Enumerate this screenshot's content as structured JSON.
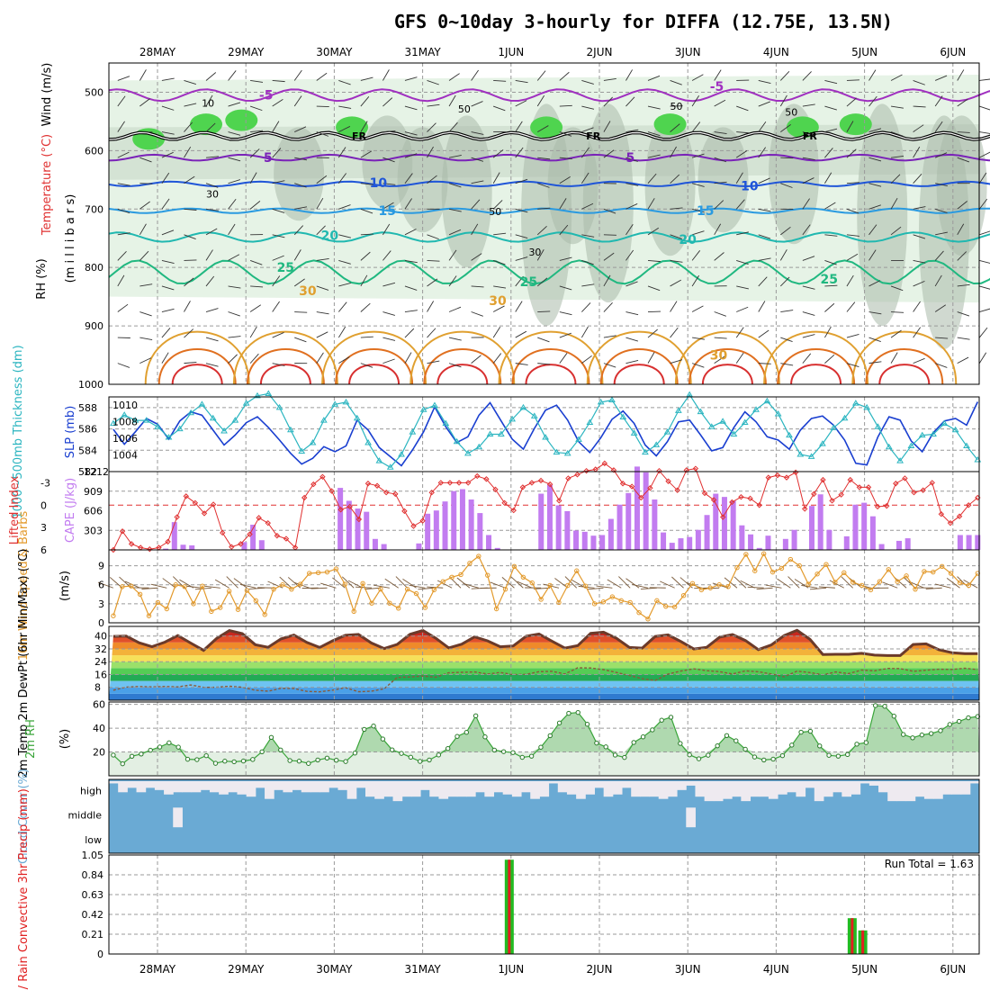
{
  "title": "GFS 0~10day 3-hourly for DIFFA (12.75E, 13.5N)",
  "days": [
    "28MAY",
    "29MAY",
    "30MAY",
    "31MAY",
    "1JUN",
    "2JUN",
    "3JUN",
    "4JUN",
    "5JUN",
    "6JUN"
  ],
  "colors": {
    "rh_green": "#4fd44f",
    "rh_gray": "#a9b9a9",
    "rh_pale": "#e6f3e6",
    "slp": "#1a3fd0",
    "thickness": "#2bb5c0",
    "lifted": "#e03030",
    "cape": "#c27cf0",
    "wind10": "#e39a2c",
    "barb": "#7a5a3a",
    "temp_top": "#6b3a2a",
    "dewpt": "#8a5a3a",
    "rh2m": "#3aa53a",
    "cloud": "#6aaad4",
    "cloud_gap": "#eeeaf0",
    "precip_total": "#22bb22",
    "precip_conv": "#e02020"
  },
  "chart_data": [
    {
      "type": "contour",
      "panel": "upper-air",
      "ylabels": [
        "Wind (m/s)",
        "Temperature (°C)",
        "(m i l l i b a r s)",
        "RH (%)"
      ],
      "ylim": [
        1000,
        450
      ],
      "yticks": [
        500,
        600,
        700,
        800,
        900,
        1000
      ],
      "rh_labels": [
        "10",
        "50",
        "30",
        "50",
        "30",
        "50",
        "50"
      ],
      "freezing_label": "FR",
      "isotherms": [
        {
          "label": "-5",
          "pressure": 505
        },
        {
          "label": "-5",
          "pressure": 490
        },
        {
          "label": "5",
          "pressure": 612
        },
        {
          "label": "5",
          "pressure": 612
        },
        {
          "label": "10",
          "pressure": 655
        },
        {
          "label": "10",
          "pressure": 660
        },
        {
          "label": "15",
          "pressure": 703
        },
        {
          "label": "15",
          "pressure": 703
        },
        {
          "label": "20",
          "pressure": 745
        },
        {
          "label": "20",
          "pressure": 752
        },
        {
          "label": "25",
          "pressure": 800
        },
        {
          "label": "25",
          "pressure": 824
        },
        {
          "label": "25",
          "pressure": 820
        },
        {
          "label": "30",
          "pressure": 840
        },
        {
          "label": "30",
          "pressure": 857
        },
        {
          "label": "30",
          "pressure": 950
        }
      ]
    },
    {
      "type": "line",
      "panel": "slp-thickness",
      "ylabel_left": "1000~500mb Thickness (dm)",
      "ylabel_right": "SLP (mb)",
      "left_ticks": [
        582,
        584,
        586,
        588
      ],
      "right_ticks": [
        1004,
        1006,
        1008,
        1010
      ],
      "series": [
        {
          "name": "SLP (mb)",
          "axis": "right",
          "values": [
            1007.1,
            1005.3,
            1006.8,
            1008.4,
            1007.7,
            1005.9,
            1008.1,
            1009.2,
            1008.8,
            1007.0,
            1005.2,
            1006.4,
            1007.9,
            1008.6,
            1007.3,
            1005.8,
            1004.2,
            1002.9,
            1003.6,
            1005.0,
            1004.4,
            1005.1,
            1008.2,
            1007.0,
            1004.9,
            1003.8,
            1002.7,
            1004.6,
            1006.8,
            1009.8,
            1007.4,
            1005.5,
            1006.2,
            1008.8,
            1010.3,
            1008.1,
            1005.9,
            1004.7,
            1007.2,
            1009.4,
            1010.0,
            1008.2,
            1005.6,
            1004.3,
            1006.1,
            1008.3,
            1009.3,
            1007.8,
            1005.2,
            1003.9,
            1005.6,
            1008.0,
            1008.2,
            1006.4,
            1004.5,
            1004.9,
            1007.3,
            1009.2,
            1008.0,
            1006.2,
            1005.8,
            1004.7,
            1007.0,
            1008.4,
            1008.7,
            1007.6,
            1005.8,
            1003.0,
            1002.8,
            1006.2,
            1008.6,
            1008.2,
            1005.7,
            1004.4,
            1006.7,
            1008.1,
            1008.4,
            1007.6,
            1010.4
          ]
        },
        {
          "name": "Thickness (dm)",
          "axis": "left",
          "values": [
            586.5,
            587.3,
            586.8,
            586.8,
            586.2,
            585.2,
            586.0,
            587.5,
            588.3,
            587.0,
            585.8,
            586.8,
            588.4,
            589.1,
            589.3,
            588.0,
            585.9,
            583.9,
            584.7,
            586.8,
            588.3,
            588.5,
            587.0,
            584.7,
            583.0,
            582.4,
            583.6,
            585.7,
            587.8,
            588.2,
            586.5,
            584.8,
            583.7,
            584.3,
            585.5,
            585.5,
            586.9,
            588.0,
            587.2,
            585.2,
            583.8,
            583.7,
            585.0,
            586.6,
            588.5,
            588.7,
            587.1,
            585.6,
            583.8,
            584.5,
            585.7,
            587.7,
            589.2,
            587.6,
            586.2,
            586.7,
            585.5,
            586.6,
            587.8,
            588.6,
            587.4,
            585.4,
            583.6,
            583.4,
            584.6,
            586.1,
            587.0,
            588.4,
            588.0,
            586.2,
            584.3,
            583.0,
            584.4,
            585.4,
            585.5,
            586.5,
            585.9,
            584.4,
            583.1
          ]
        }
      ]
    },
    {
      "type": "bar+line",
      "panel": "cape-li",
      "ylabel_left": "Lifted Index",
      "ylabel_right": "CAPE (J/kg)",
      "li_ticks": [
        "-3",
        "0",
        "3",
        "6"
      ],
      "cape_ticks": [
        "303",
        "606",
        "909",
        "1212"
      ],
      "cape_values": [
        0,
        0,
        0,
        0,
        0,
        0,
        20,
        430,
        80,
        70,
        0,
        0,
        0,
        0,
        0,
        120,
        390,
        150,
        0,
        0,
        0,
        0,
        0,
        0,
        0,
        0,
        960,
        760,
        640,
        590,
        170,
        90,
        0,
        0,
        0,
        100,
        560,
        610,
        750,
        910,
        940,
        780,
        570,
        230,
        30,
        0,
        0,
        0,
        0,
        870,
        1010,
        690,
        600,
        300,
        280,
        220,
        230,
        480,
        700,
        880,
        1290,
        1200,
        780,
        270,
        110,
        180,
        200,
        310,
        540,
        870,
        820,
        760,
        380,
        240,
        30,
        220,
        0,
        170,
        310,
        0,
        680,
        860,
        310,
        0,
        210,
        700,
        730,
        520,
        90,
        0,
        140,
        180,
        0,
        0,
        0,
        0,
        0,
        230,
        230,
        230
      ],
      "li_values": [
        6.0,
        3.5,
        5.2,
        5.7,
        5.9,
        5.7,
        4.9,
        1.6,
        -1.2,
        -0.3,
        1.1,
        -0.1,
        3.7,
        5.6,
        5.2,
        3.9,
        1.7,
        2.4,
        4.1,
        4.5,
        5.7,
        -1.0,
        -2.8,
        -3.8,
        -1.9,
        0.6,
        0.2,
        1.9,
        -2.9,
        -2.6,
        -1.7,
        -1.5,
        0.8,
        2.8,
        2.1,
        -1.7,
        -3.0,
        -3.0,
        -3.0,
        -3.0,
        -3.9,
        -3.5,
        -2.1,
        -0.3,
        0.7,
        -2.4,
        -3.0,
        -3.3,
        -2.8,
        -0.6,
        -3.6,
        -4.1,
        -4.6,
        -4.8,
        -5.6,
        -4.7,
        -2.9,
        -2.5,
        -1.0,
        -2.3,
        -4.6,
        -3.2,
        -2.0,
        -4.7,
        -4.9,
        -1.6,
        -0.7,
        1.6,
        -0.4,
        -1.1,
        -0.9,
        0.0,
        -3.7,
        -4.0,
        -3.7,
        -4.4,
        0.5,
        -1.5,
        -3.4,
        -0.6,
        -1.4,
        -3.4,
        -2.4,
        -2.4,
        0.2,
        0.1,
        -2.9,
        -3.6,
        -1.7,
        -2.0,
        -3.0,
        1.2,
        2.4,
        1.5,
        0.0,
        -1.0
      ]
    },
    {
      "type": "line",
      "panel": "wind10",
      "ylabel": "10m Wind Speed & Barbs",
      "unit": "(m/s)",
      "yticks": [
        0,
        3,
        6,
        9
      ],
      "values": [
        1.1,
        5.7,
        5.8,
        4.5,
        1.1,
        3.2,
        2.2,
        6.0,
        5.7,
        3.0,
        5.8,
        1.8,
        2.4,
        5.0,
        2.1,
        5.1,
        3.5,
        1.3,
        5.3,
        6.0,
        5.3,
        6.1,
        7.8,
        7.9,
        8.0,
        8.5,
        6.1,
        1.8,
        6.2,
        3.1,
        5.3,
        3.1,
        2.3,
        5.3,
        4.6,
        2.4,
        5.2,
        6.5,
        7.2,
        7.6,
        9.4,
        10.5,
        7.5,
        2.2,
        5.3,
        8.9,
        7.2,
        6.3,
        3.7,
        5.9,
        3.2,
        5.9,
        8.2,
        5.8,
        3.0,
        3.3,
        4.1,
        3.5,
        3.2,
        1.6,
        0.6,
        3.5,
        2.6,
        2.5,
        4.3,
        6.2,
        5.2,
        5.5,
        6.0,
        5.7,
        8.7,
        10.8,
        8.2,
        10.9,
        8.0,
        8.6,
        10.0,
        9.0,
        6.1,
        7.7,
        9.2,
        6.4,
        7.9,
        6.4,
        5.9,
        5.2,
        6.5,
        8.4,
        6.5,
        7.4,
        5.3,
        8.1,
        8.0,
        8.9,
        7.8,
        6.3,
        5.9,
        7.8
      ]
    },
    {
      "type": "area",
      "panel": "temp2m",
      "ylabel": "2m Temp 2m DewPt (6hr Min/Max) (°C)",
      "yticks": [
        8,
        16,
        24,
        32,
        40
      ],
      "temp_values": [
        39.8,
        40.0,
        35.8,
        33.4,
        36.2,
        40.3,
        35.6,
        31.1,
        38.4,
        43.4,
        41.5,
        34.6,
        33.0,
        38.2,
        40.6,
        36.0,
        32.9,
        37.0,
        40.5,
        41.0,
        35.7,
        32.2,
        34.8,
        41.1,
        43.5,
        38.6,
        32.6,
        34.9,
        39.5,
        37.0,
        33.3,
        33.8,
        39.9,
        41.3,
        36.8,
        32.5,
        34.0,
        41.7,
        42.4,
        38.6,
        32.9,
        32.5,
        39.7,
        40.7,
        36.6,
        31.9,
        33.0,
        39.3,
        40.9,
        37.2,
        31.5,
        34.4,
        40.3,
        43.6,
        37.9,
        28.5,
        28.6,
        28.6,
        29.2,
        28.1,
        27.8,
        27.8,
        34.7,
        35.1,
        31.4,
        29.6,
        29.0,
        29.0
      ],
      "dewpt_values": [
        6.2,
        8.2,
        8.5,
        8.3,
        8.5,
        8.3,
        9.5,
        8.0,
        8.1,
        8.7,
        8.1,
        6.2,
        5.6,
        7.4,
        7.3,
        5.5,
        5.2,
        6.3,
        7.8,
        5.3,
        5.6,
        7.1,
        14.2,
        14.5,
        15.1,
        14.3,
        17.1,
        17.4,
        17.6,
        16.3,
        17.3,
        16.0,
        16.1,
        17.8,
        18.0,
        16.3,
        20.2,
        20.1,
        19.1,
        17.3,
        15.4,
        13.4,
        12.3,
        16.3,
        18.2,
        19.6,
        18.4,
        17.8,
        16.4,
        18.3,
        17.7,
        16.4,
        14.6,
        18.1,
        17.2,
        15.8,
        17.6,
        16.6,
        18.8,
        18.3,
        19.8,
        19.7,
        18.0,
        18.7,
        19.3,
        19.2,
        19.9,
        19.1
      ]
    },
    {
      "type": "area",
      "panel": "rh2m",
      "ylabel": "2m RH",
      "unit": "(%)",
      "yticks": [
        20,
        40,
        60
      ],
      "values": [
        17.4,
        10.1,
        16.4,
        18.3,
        21.5,
        24.2,
        27.7,
        24.1,
        13.9,
        13.6,
        16.9,
        10.5,
        12.3,
        11.8,
        12.4,
        13.7,
        20.2,
        32.3,
        21.7,
        12.8,
        12.3,
        10.4,
        13.3,
        14.9,
        13.1,
        12.0,
        19.1,
        39.0,
        41.8,
        30.9,
        21.8,
        18.8,
        15.6,
        12.1,
        13.3,
        17.5,
        22.9,
        33.1,
        36.5,
        50.4,
        32.7,
        21.6,
        20.3,
        19.5,
        15.5,
        16.5,
        24.0,
        33.7,
        44.4,
        52.5,
        53.2,
        43.3,
        27.5,
        24.3,
        17.4,
        15.4,
        28.0,
        32.7,
        38.6,
        46.7,
        49.2,
        27.2,
        17.6,
        14.3,
        17.3,
        25.2,
        33.8,
        29.4,
        22.3,
        15.8,
        13.3,
        14.0,
        16.9,
        25.8,
        36.6,
        37.4,
        25.1,
        17.2,
        16.5,
        17.9,
        26.6,
        27.9,
        59.0,
        58.4,
        50.1,
        34.7,
        31.9,
        34.3,
        35.5,
        37.9,
        43.1,
        45.7,
        48.7,
        49.8
      ]
    },
    {
      "type": "heatmap",
      "panel": "cloud",
      "ylabel": "Cloud Cover (%)",
      "levels": [
        "high",
        "middle",
        "low"
      ],
      "high": [
        0.9,
        0.5,
        0.7,
        0.5,
        0.7,
        0.6,
        0.4,
        0.5,
        0.5,
        0.5,
        0.6,
        0.5,
        0.4,
        0.5,
        0.4,
        0.3,
        0.7,
        0.2,
        0.6,
        0.5,
        0.6,
        0.5,
        0.5,
        0.5,
        0.7,
        0.6,
        0.2,
        0.7,
        0.3,
        0.2,
        0.3,
        0.1,
        0.3,
        0.3,
        0.6,
        0.3,
        0.2,
        0.3,
        0.3,
        0.3,
        0.5,
        0.3,
        0.5,
        0.4,
        0.3,
        0.5,
        0.2,
        0.3,
        0.9,
        0.5,
        0.4,
        0.2,
        0.4,
        0.7,
        0.3,
        0.4,
        0.7,
        0.3,
        0.3,
        0.3,
        0.2,
        0.3,
        0.6,
        0.8,
        0.3,
        0.1,
        0.1,
        0.2,
        0.3,
        0.1,
        0.3,
        0.3,
        0.2,
        0.4,
        0.5,
        0.3,
        0.7,
        0.1,
        0.3,
        0.5,
        0.3,
        0.4,
        0.9,
        0.8,
        0.5,
        0.1,
        0.1,
        0.1,
        0.3,
        0.2,
        0.2,
        0.4,
        0.4,
        0.4,
        0.9
      ],
      "middle": [
        0.0,
        0.0,
        0.0,
        0.0,
        0.0,
        0.0,
        0.0,
        0.3,
        0.0,
        0.0,
        0.0,
        0.0,
        0.0,
        0.0,
        0.0,
        0.0,
        0.0,
        0.0,
        0.0,
        0.0,
        0.0,
        0.0,
        0.0,
        0.0,
        0.0,
        0.0,
        0.0,
        0.0,
        0.0,
        0.0,
        0.0,
        0.0,
        0.0,
        0.0,
        0.0,
        0.0,
        0.0,
        0.0,
        0.0,
        0.0,
        0.0,
        0.0,
        0.0,
        0.0,
        0.0,
        0.0,
        0.0,
        0.0,
        0.0,
        0.0,
        0.0,
        0.0,
        0.0,
        0.0,
        0.0,
        0.0,
        0.0,
        0.0,
        0.0,
        0.0,
        0.0,
        0.0,
        0.0,
        0.6,
        0.0,
        0.0,
        0.0,
        0.0,
        0.0,
        0.0,
        0.0,
        0.0,
        0.0,
        0.0,
        0.0,
        0.0,
        0.0,
        0.0,
        0.0,
        0.0,
        0.0,
        0.0,
        0.0,
        0.0,
        0.0,
        0.0,
        0.0,
        0.0,
        0.0,
        0.0,
        0.0,
        0.0,
        0.0,
        0.0,
        0.0
      ],
      "low": [
        0.0,
        0.0,
        0.0,
        0.0,
        0.0,
        0.0,
        0.0,
        0.0,
        0.0,
        0.0,
        0.0,
        0.0,
        0.0,
        0.0,
        0.0,
        0.0,
        0.0,
        0.0,
        0.0,
        0.0,
        0.0,
        0.0,
        0.0,
        0.0,
        0.0,
        0.0,
        0.0,
        0.0,
        0.0,
        0.0,
        0.0,
        0.0,
        0.0,
        0.0,
        0.0,
        0.0,
        0.0,
        0.0,
        0.0,
        0.0,
        0.0,
        0.0,
        0.0,
        0.0,
        0.0,
        0.0,
        0.0,
        0.0,
        0.0,
        0.0,
        0.0,
        0.0,
        0.0,
        0.0,
        0.0,
        0.0,
        0.0,
        0.0,
        0.0,
        0.0,
        0.0,
        0.0,
        0.0,
        0.0,
        0.0,
        0.0,
        0.0,
        0.0,
        0.0,
        0.0,
        0.0,
        0.0,
        0.0,
        0.0,
        0.0,
        0.0,
        0.0,
        0.0,
        0.0,
        0.0,
        0.0,
        0.0,
        0.0,
        0.0,
        0.0,
        0.0,
        0.0,
        0.0,
        0.0,
        0.0,
        0.0,
        0.0,
        0.0,
        0.0,
        0.0
      ]
    },
    {
      "type": "bar",
      "panel": "precip",
      "ylabel": "Total / Rain Convective 3hr Precip (mm)",
      "yticks": [
        "0",
        "0.21",
        "0.42",
        "0.63",
        "0.84",
        "1.05"
      ],
      "ylim": [
        0,
        1.05
      ],
      "run_total_text": "Run Total = 1.63",
      "events": [
        {
          "day_offset": 3.98,
          "total": 1.0,
          "convective": 1.0
        },
        {
          "day_offset": 7.86,
          "total": 0.38,
          "convective": 0.38
        },
        {
          "day_offset": 7.98,
          "total": 0.25,
          "convective": 0.25
        }
      ]
    }
  ]
}
